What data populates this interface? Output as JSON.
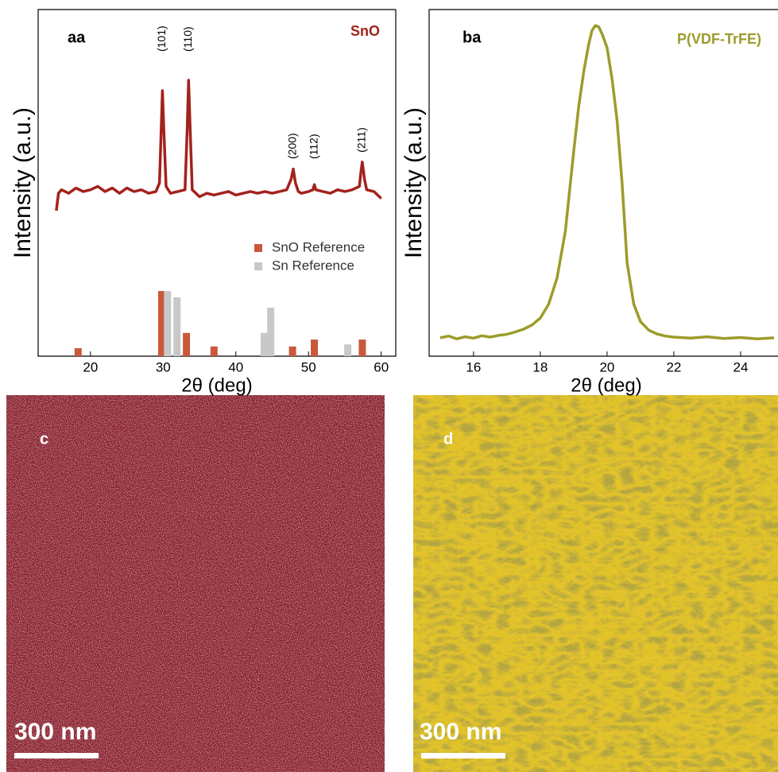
{
  "chart_data": [
    {
      "type": "line",
      "panel_label": "aa",
      "xlabel": "2θ (deg)",
      "ylabel": "Intensity (a.u.)",
      "xlim": [
        12.8,
        62
      ],
      "ylim": [
        0,
        100
      ],
      "xticks": [
        20,
        30,
        40,
        50,
        60
      ],
      "legend": "center right",
      "series": [
        {
          "name": "SnO",
          "type": "line",
          "color": "#a3221c",
          "x": [
            15.3,
            15.6,
            16,
            17,
            18,
            19,
            20,
            21,
            22,
            23,
            24,
            25,
            26,
            27,
            28,
            29,
            29.5,
            29.8,
            29.9,
            30.1,
            30.4,
            31,
            32,
            33,
            33.3,
            33.5,
            33.7,
            34,
            35,
            36,
            37,
            38,
            39,
            40,
            41,
            42,
            43,
            44,
            45,
            46,
            47,
            47.6,
            47.9,
            48.2,
            48.6,
            49,
            50,
            50.6,
            50.8,
            51,
            52,
            53,
            54,
            55,
            56,
            57,
            57.2,
            57.4,
            57.7,
            58,
            59,
            60
          ],
          "values": [
            42,
            47,
            48,
            47,
            48.5,
            47.5,
            48,
            49,
            47.5,
            48.5,
            47,
            48.5,
            47.5,
            48,
            47,
            47.5,
            50,
            70,
            76.6,
            65,
            49,
            47,
            47.5,
            48,
            65,
            79.6,
            66,
            48,
            46,
            47,
            46.5,
            47,
            47.5,
            46.5,
            47,
            47.5,
            47,
            47.5,
            47,
            47.5,
            48,
            51,
            54,
            50,
            47.5,
            47,
            47.5,
            48,
            49.5,
            48,
            47.5,
            47,
            48,
            47.5,
            48,
            49,
            53,
            56,
            51,
            48,
            47.5,
            45.5
          ]
        },
        {
          "name": "SnO Reference",
          "type": "bar",
          "color": "#c9593b",
          "x": [
            18.3,
            29.8,
            33.2,
            37,
            47.8,
            50.8,
            57.4
          ],
          "values": [
            2.3,
            18.8,
            6.7,
            2.8,
            2.8,
            4.8,
            4.8
          ]
        },
        {
          "name": "Sn Reference",
          "type": "bar",
          "color": "#c8c8c8",
          "x": [
            30.6,
            31.9,
            43.9,
            44.8,
            55.4
          ],
          "values": [
            18.8,
            17,
            6.7,
            14,
            3.4
          ]
        }
      ],
      "annotations": [
        {
          "text": "(101)",
          "x": 29.9
        },
        {
          "text": "(110)",
          "x": 33.5
        },
        {
          "text": "(200)",
          "x": 47.9
        },
        {
          "text": "(112)",
          "x": 50.8
        },
        {
          "text": "(211)",
          "x": 57.4
        }
      ]
    },
    {
      "type": "line",
      "panel_label": "ba",
      "xlabel": "2θ (deg)",
      "ylabel": "Intensity (a.u.)",
      "xlim": [
        14.67,
        25.12
      ],
      "ylim": [
        0,
        100
      ],
      "xticks": [
        16,
        18,
        20,
        22,
        24
      ],
      "series": [
        {
          "name": "P(VDF-TrFE)",
          "type": "line",
          "color": "#9c9c2c",
          "x": [
            15,
            15.25,
            15.5,
            15.75,
            16,
            16.25,
            16.5,
            16.75,
            17,
            17.25,
            17.5,
            17.75,
            18,
            18.25,
            18.5,
            18.75,
            19,
            19.15,
            19.3,
            19.45,
            19.55,
            19.65,
            19.75,
            19.85,
            20,
            20.15,
            20.3,
            20.45,
            20.6,
            20.8,
            21,
            21.25,
            21.5,
            21.75,
            22,
            22.5,
            23,
            23.5,
            24,
            24.5,
            25
          ],
          "values": [
            5.3,
            5.8,
            5,
            5.6,
            5.2,
            5.9,
            5.5,
            6,
            6.3,
            7,
            7.8,
            9,
            11,
            15,
            22.5,
            36,
            59,
            72,
            82,
            90,
            94,
            95.4,
            95,
            93,
            89,
            80,
            68,
            50,
            27,
            15,
            10,
            7.5,
            6.4,
            5.8,
            5.5,
            5.2,
            5.6,
            5.1,
            5.4,
            5,
            5.3
          ]
        }
      ]
    }
  ],
  "images": [
    {
      "label": "c",
      "scale_bar": "300 nm"
    },
    {
      "label": "d",
      "scale_bar": "300 nm"
    }
  ]
}
